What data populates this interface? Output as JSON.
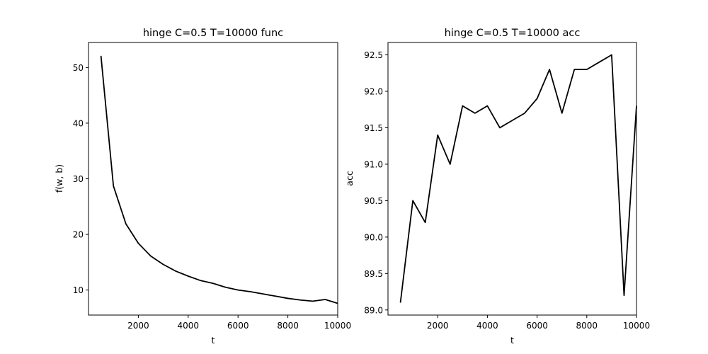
{
  "chart_data": [
    {
      "type": "line",
      "title": "hinge C=0.5 T=10000 func",
      "xlabel": "t",
      "ylabel": "f(w, b)",
      "xlim": [
        0,
        10000
      ],
      "ylim": [
        5.5,
        54.5
      ],
      "xticks": [
        2000,
        4000,
        6000,
        8000,
        10000
      ],
      "yticks": [
        10,
        20,
        30,
        40,
        50
      ],
      "x": [
        500,
        1000,
        1500,
        2000,
        2500,
        3000,
        3500,
        4000,
        4500,
        5000,
        5500,
        6000,
        6500,
        7000,
        7500,
        8000,
        8500,
        9000,
        9500,
        10000
      ],
      "series": [
        {
          "values": [
            52.1,
            28.7,
            21.9,
            18.4,
            16.1,
            14.6,
            13.4,
            12.5,
            11.7,
            11.2,
            10.5,
            10.0,
            9.7,
            9.3,
            8.9,
            8.5,
            8.2,
            8.0,
            8.3,
            7.6
          ]
        }
      ],
      "color": "#000000",
      "grid": false
    },
    {
      "type": "line",
      "title": "hinge C=0.5 T=10000 acc",
      "xlabel": "t",
      "ylabel": "acc",
      "xlim": [
        0,
        10000
      ],
      "ylim": [
        88.93,
        92.67
      ],
      "xticks": [
        2000,
        4000,
        6000,
        8000,
        10000
      ],
      "yticks": [
        89.0,
        89.5,
        90.0,
        90.5,
        91.0,
        91.5,
        92.0,
        92.5
      ],
      "x": [
        500,
        1000,
        1500,
        2000,
        2500,
        3000,
        3500,
        4000,
        4500,
        5000,
        5500,
        6000,
        6500,
        7000,
        7500,
        8000,
        8500,
        9000,
        9500,
        10000
      ],
      "series": [
        {
          "values": [
            89.1,
            90.5,
            90.2,
            91.4,
            91.0,
            91.8,
            91.7,
            91.8,
            91.5,
            91.6,
            91.7,
            91.9,
            92.3,
            91.7,
            92.3,
            92.3,
            92.4,
            92.5,
            89.2,
            91.8
          ]
        }
      ],
      "color": "#000000",
      "grid": false
    }
  ]
}
